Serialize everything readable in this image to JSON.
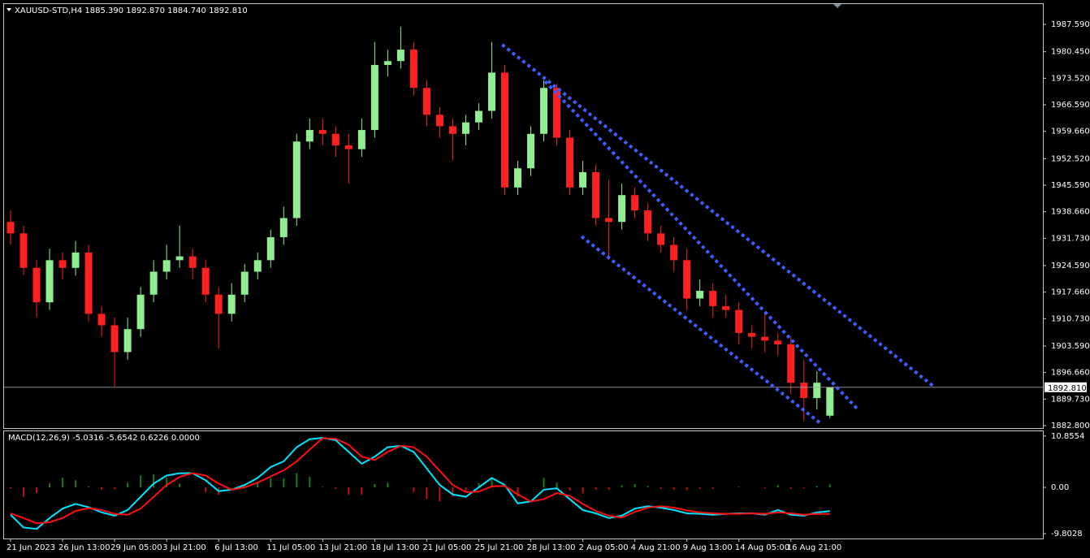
{
  "chart_data": [
    {
      "type": "candlestick",
      "title": "XAUUSD-STD,H4  1885.390 1892.870 1884.740 1892.810",
      "categories": [
        "21 Jun 2023",
        null,
        null,
        null,
        "26 Jun 13:00",
        null,
        null,
        null,
        "29 Jun 05:00",
        null,
        null,
        null,
        "3 Jul 21:00",
        null,
        null,
        null,
        "6 Jul 13:00",
        null,
        null,
        null,
        "11 Jul 05:00",
        null,
        null,
        null,
        "13 Jul 21:00",
        null,
        null,
        null,
        "18 Jul 13:00",
        null,
        null,
        null,
        "21 Jul 05:00",
        null,
        null,
        null,
        "25 Jul 21:00",
        null,
        null,
        null,
        "28 Jul 13:00",
        null,
        null,
        null,
        "2 Aug 05:00",
        null,
        null,
        null,
        "4 Aug 21:00",
        null,
        null,
        null,
        "9 Aug 13:00",
        null,
        null,
        null,
        "14 Aug 05:00",
        null,
        null,
        null,
        "16 Aug 21:00",
        null,
        null,
        null
      ],
      "open": [
        1936,
        1933,
        1924,
        1915,
        1926,
        1924,
        1928,
        1912,
        1909,
        1902,
        1908,
        1917,
        1923,
        1926,
        1927,
        1924,
        1917,
        1912,
        1917,
        1923,
        1926,
        1932,
        1937,
        1957,
        1960,
        1959,
        1956,
        1955,
        1960,
        1977,
        1978,
        1981,
        1971,
        1964,
        1961,
        1959,
        1962,
        1965,
        1975,
        1945,
        1950,
        1959,
        1971,
        1958,
        1945,
        1949,
        1937,
        1936,
        1943,
        1939,
        1933,
        1930,
        1926,
        1916,
        1918,
        1914,
        1913,
        1907,
        1906,
        1905,
        1904,
        1894,
        1890,
        1885.39
      ],
      "high": [
        1939,
        1935,
        1926,
        1929,
        1928,
        1931,
        1930,
        1914,
        1911,
        1911,
        1919,
        1926,
        1930,
        1935,
        1929,
        1926,
        1919,
        1920,
        1925,
        1928,
        1934,
        1940,
        1959,
        1963,
        1963,
        1961,
        1959,
        1963,
        1983,
        1981,
        1987,
        1983,
        1973,
        1966,
        1963,
        1964,
        1967,
        1983,
        1977,
        1952,
        1961,
        1973,
        1972,
        1960,
        1952,
        1951,
        1947,
        1946,
        1945,
        1941,
        1935,
        1932,
        1929,
        1921,
        1920,
        1917,
        1915,
        1909,
        1912,
        1907,
        1906,
        1900,
        1897,
        1892.87
      ],
      "low": [
        1930,
        1922,
        1911,
        1913,
        1921,
        1922,
        1910,
        1906,
        1893,
        1900,
        1906,
        1915,
        1921,
        1924,
        1921,
        1915,
        1903,
        1910,
        1915,
        1921,
        1924,
        1930,
        1935,
        1955,
        1956,
        1953,
        1946,
        1953,
        1958,
        1974,
        1976,
        1969,
        1961,
        1958,
        1952,
        1956,
        1960,
        1963,
        1943,
        1943,
        1948,
        1957,
        1956,
        1943,
        1943,
        1935,
        1926,
        1934,
        1937,
        1931,
        1928,
        1923,
        1913,
        1914,
        1911,
        1911,
        1904,
        1903,
        1902,
        1901,
        1891,
        1884,
        1887,
        1884.74
      ],
      "close": [
        1933,
        1924,
        1915,
        1926,
        1924,
        1928,
        1912,
        1909,
        1902,
        1908,
        1917,
        1923,
        1926,
        1927,
        1924,
        1917,
        1912,
        1917,
        1923,
        1926,
        1932,
        1937,
        1957,
        1960,
        1959,
        1956,
        1955,
        1960,
        1977,
        1978,
        1981,
        1971,
        1964,
        1961,
        1959,
        1962,
        1965,
        1975,
        1945,
        1950,
        1959,
        1971,
        1958,
        1945,
        1949,
        1937,
        1936,
        1943,
        1939,
        1933,
        1930,
        1926,
        1916,
        1918,
        1914,
        1913,
        1907,
        1906,
        1905,
        1904,
        1894,
        1890,
        1894,
        1892.81
      ],
      "up_color": "#90ee90",
      "down_color": "#ff2020",
      "xlim": [
        -0.5,
        79.375
      ],
      "ylim": [
        1882.16,
        1992.9
      ],
      "yticks": [
        {
          "value": 1987.59,
          "label": "1987.590"
        },
        {
          "value": 1980.45,
          "label": "1980.450"
        },
        {
          "value": 1973.52,
          "label": "1973.520"
        },
        {
          "value": 1966.59,
          "label": "1966.590"
        },
        {
          "value": 1959.66,
          "label": "1959.660"
        },
        {
          "value": 1952.52,
          "label": "1952.520"
        },
        {
          "value": 1945.59,
          "label": "1945.590"
        },
        {
          "value": 1938.66,
          "label": "1938.660"
        },
        {
          "value": 1931.73,
          "label": "1931.730"
        },
        {
          "value": 1924.59,
          "label": "1924.590"
        },
        {
          "value": 1917.66,
          "label": "1917.660"
        },
        {
          "value": 1910.73,
          "label": "1910.730"
        },
        {
          "value": 1903.59,
          "label": "1903.590"
        },
        {
          "value": 1896.66,
          "label": "1896.660"
        },
        {
          "value": 1889.73,
          "label": "1889.730"
        },
        {
          "value": 1882.8,
          "label": "1882.800"
        }
      ],
      "last_price": {
        "value": 1892.81,
        "label": "1892.810"
      },
      "trendline_color": "#3f5cff",
      "trendlines": [
        {
          "x": [
            37.8,
            71.1
          ],
          "y": [
            1982.3,
            1892.7
          ]
        },
        {
          "x": [
            41.1,
            65.1
          ],
          "y": [
            1972.7,
            1887.2
          ]
        },
        {
          "x": [
            43.9,
            62.2
          ],
          "y": [
            1932.2,
            1883.6
          ]
        }
      ],
      "grid": false
    },
    {
      "type": "macd",
      "title": "MACD(12,26,9) -5.0316 -5.6542 0.6226 0.0000",
      "xlim": [
        -0.5,
        79.375
      ],
      "ylim": [
        -10.83,
        11.87
      ],
      "yticks": [
        {
          "value": 10.8554,
          "label": "10.8554"
        },
        {
          "value": 0,
          "label": "0.00"
        },
        {
          "value": -9.8028,
          "label": "-9.8028"
        }
      ],
      "histogram": {
        "up_color": "#1f7a1f",
        "down_color": "#c01010",
        "values": [
          -0.3,
          -2.0,
          -1.2,
          0.9,
          2.0,
          1.5,
          0.2,
          -0.5,
          -0.4,
          1.0,
          2.5,
          2.8,
          2.0,
          0.8,
          0.0,
          -1.0,
          -1.6,
          0.0,
          0.5,
          1.0,
          2.0,
          1.9,
          3.0,
          2.2,
          0.1,
          -0.3,
          -1.5,
          -1.5,
          0.7,
          1.0,
          0.0,
          -1.0,
          -2.5,
          -3.0,
          -2.0,
          -1.0,
          0.9,
          1.8,
          0.2,
          -1.9,
          0.0,
          2.0,
          1.0,
          -0.7,
          -1.3,
          -0.5,
          -0.5,
          0.4,
          0.7,
          0.3,
          -0.3,
          -0.5,
          -0.6,
          -0.3,
          -0.3,
          0.0,
          0.1,
          0.0,
          -0.2,
          0.5,
          -0.3,
          -0.2,
          0.3,
          0.6226
        ]
      },
      "lines": [
        {
          "color": "#00e5ff",
          "values": [
            -5.8,
            -8.5,
            -8.8,
            -6.5,
            -4.5,
            -3.5,
            -4.2,
            -5.3,
            -6.0,
            -4.8,
            -2.0,
            0.8,
            2.5,
            3.0,
            3.0,
            1.5,
            -0.8,
            -0.5,
            0.5,
            2.0,
            4.3,
            5.5,
            8.5,
            10.2,
            10.5,
            10.0,
            7.5,
            5.0,
            6.5,
            8.5,
            8.8,
            7.5,
            4.0,
            0.5,
            -1.5,
            -2.0,
            0.0,
            2.0,
            0.5,
            -3.4,
            -3.0,
            -0.5,
            -0.2,
            -2.5,
            -4.8,
            -5.5,
            -6.5,
            -6.0,
            -4.5,
            -4.0,
            -4.3,
            -4.8,
            -5.5,
            -5.6,
            -5.8,
            -5.6,
            -5.5,
            -5.5,
            -5.8,
            -4.8,
            -5.8,
            -6.0,
            -5.3,
            -5.0316
          ]
        },
        {
          "color": "#ff1010",
          "values": [
            -5.5,
            -6.5,
            -7.6,
            -7.4,
            -6.5,
            -5.0,
            -4.4,
            -4.8,
            -5.6,
            -5.8,
            -4.5,
            -2.0,
            0.5,
            2.2,
            3.0,
            2.5,
            0.8,
            -0.5,
            0.0,
            1.0,
            2.3,
            3.6,
            5.5,
            8.0,
            10.4,
            10.3,
            9.0,
            6.5,
            5.8,
            7.5,
            8.8,
            8.5,
            6.5,
            3.5,
            0.5,
            -1.0,
            -0.9,
            0.2,
            0.3,
            -1.5,
            -3.0,
            -2.5,
            -1.2,
            -1.8,
            -3.5,
            -5.0,
            -6.0,
            -6.4,
            -5.2,
            -4.3,
            -4.0,
            -4.3,
            -4.9,
            -5.3,
            -5.5,
            -5.6,
            -5.6,
            -5.5,
            -5.6,
            -5.3,
            -5.5,
            -5.8,
            -5.6,
            -5.6542
          ]
        }
      ],
      "grid": false
    }
  ]
}
